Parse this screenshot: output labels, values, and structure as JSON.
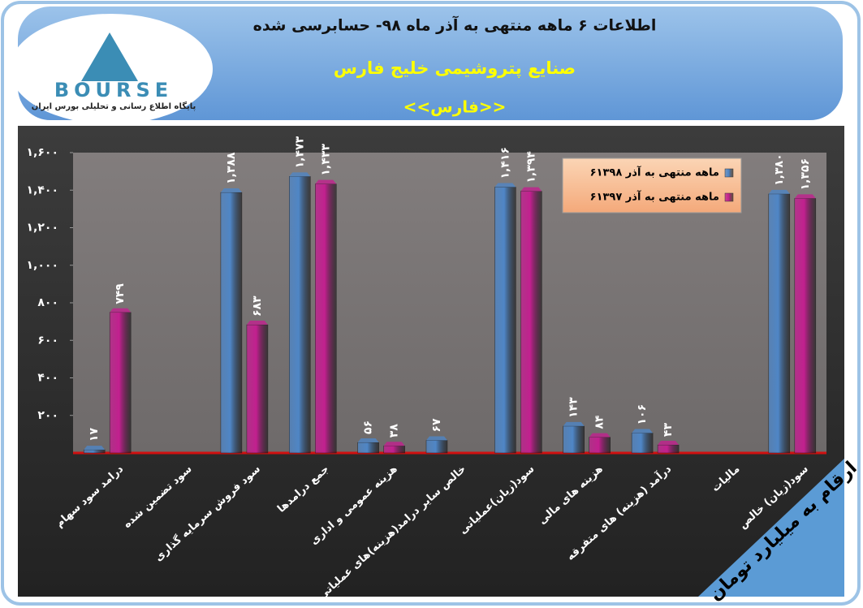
{
  "logo": {
    "text": "BOURSE",
    "tagline": "پایگاه اطلاع رسانی و تحلیلی بورس ایران"
  },
  "chart_data": {
    "type": "bar",
    "title": "اطلاعات ۶ ماهه منتهی به آذر ماه ۹۸- حسابرسی شده",
    "subtitle": "صنایع پتروشیمی خلیج فارس",
    "ticker": "<<فارس>>",
    "annotation": "ارقام به میلیارد تومان",
    "categories": [
      "درامد سود سهام",
      "سود تضمین شده",
      "سود فروش سرمایه گذاری",
      "جمع درامدها",
      "هزینه عمومی و اداری",
      "خالص سایر درامد(هزینه)های عملیاتی",
      "سود(زیان)عملیاتی",
      "هزینه های مالی",
      "درآمد (هزینه) های متفرقه",
      "مالیات",
      "سود(زیان) خالص"
    ],
    "series": [
      {
        "name": "۶ماهه منتهی به آذر ۱۳۹۸",
        "color": "#4f86c6",
        "values": [
          17,
          null,
          1388,
          1473,
          56,
          67,
          1416,
          143,
          106,
          null,
          1380
        ],
        "value_labels": [
          "۱۷",
          null,
          "۱,۳۸۸",
          "۱,۴۷۳",
          "۵۶",
          "۶۷",
          "۱,۴۱۶",
          "۱۴۳",
          "۱۰۶",
          null,
          "۱,۳۸۰"
        ]
      },
      {
        "name": "۶ماهه منتهی به آذر ۱۳۹۷",
        "color": "#c2208f",
        "values": [
          749,
          null,
          683,
          1433,
          38,
          null,
          1394,
          84,
          43,
          null,
          1356
        ],
        "value_labels": [
          "۷۴۹",
          null,
          "۶۸۳",
          "۱,۴۳۳",
          "۳۸",
          null,
          "۱,۳۹۴",
          "۸۴",
          "۴۳",
          null,
          "۱,۳۵۶"
        ]
      }
    ],
    "ylim": [
      0,
      1600
    ],
    "yticks": [
      {
        "value": 200,
        "label": "۲۰۰"
      },
      {
        "value": 400,
        "label": "۴۰۰"
      },
      {
        "value": 600,
        "label": "۶۰۰"
      },
      {
        "value": 800,
        "label": "۸۰۰"
      },
      {
        "value": 1000,
        "label": "۱,۰۰۰"
      },
      {
        "value": 1200,
        "label": "۱,۲۰۰"
      },
      {
        "value": 1400,
        "label": "۱,۴۰۰"
      },
      {
        "value": 1600,
        "label": "۱,۶۰۰"
      }
    ],
    "grid": false,
    "legend": "top-right"
  }
}
